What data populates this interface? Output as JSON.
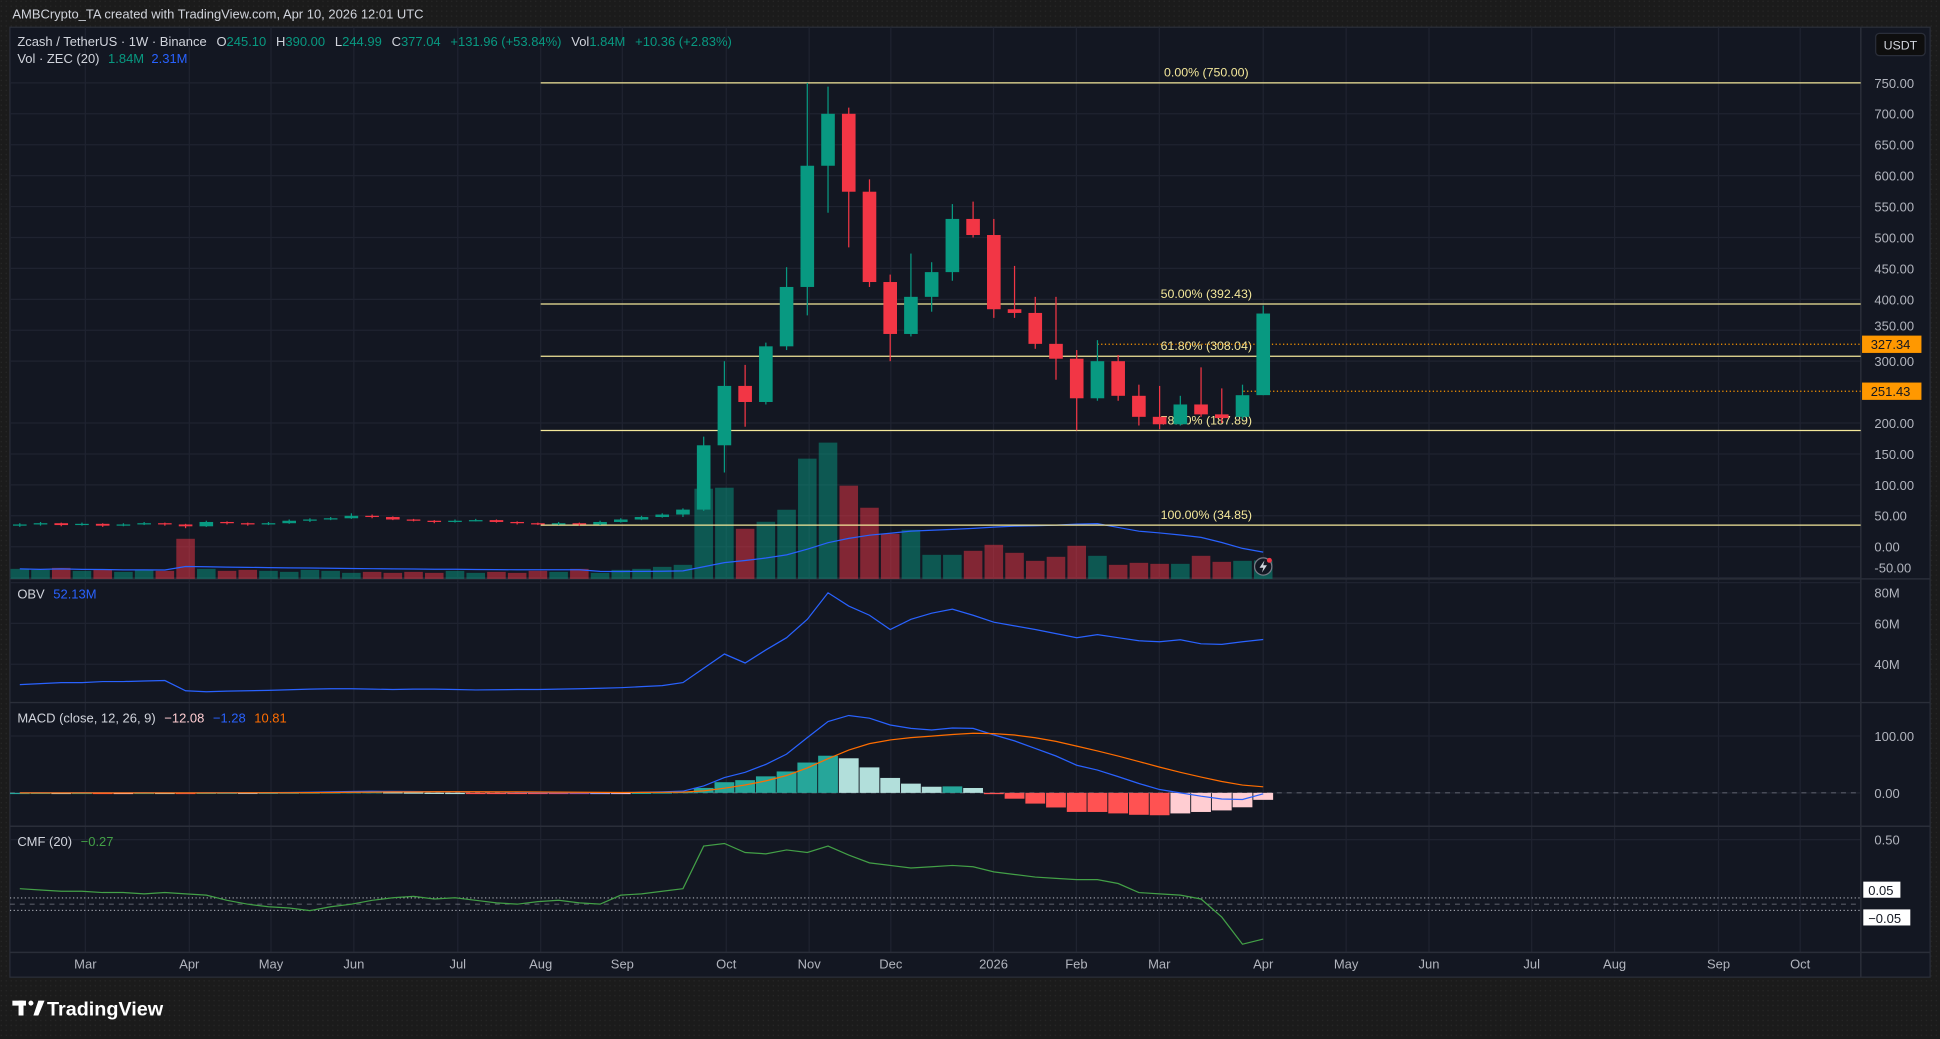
{
  "attribution": "AMBCrypto_TA created with TradingView.com, Apr 10, 2026 12:01 UTC",
  "legend": {
    "symbol": "Zcash / TetherUS · 1W · Binance",
    "o_label": "O",
    "o_value": "245.10",
    "h_label": "H",
    "h_value": "390.00",
    "l_label": "L",
    "l_value": "244.99",
    "c_label": "C",
    "c_value": "377.04",
    "change": "+131.96 (+53.84%)",
    "vol_label": "Vol",
    "vol_value": "1.84M",
    "vol_change": "+10.36 (+2.83%)",
    "vol_ind_label": "Vol · ZEC (20)",
    "vol_ind_value": "1.84M",
    "vol_ind_ma": "2.31M"
  },
  "price_axis": {
    "currency_button": "USDT",
    "ticks": [
      "750.00",
      "700.00",
      "650.00",
      "600.00",
      "550.00",
      "500.00",
      "450.00",
      "400.00",
      "350.00",
      "300.00",
      "200.00",
      "150.00",
      "100.00",
      "50.00",
      "0.00",
      "-50.00"
    ],
    "price_labels": [
      {
        "text": "327.34",
        "value": 327.34
      },
      {
        "text": "251.43",
        "value": 251.43
      }
    ]
  },
  "fib_levels": [
    {
      "label": "0.00% (750.00)",
      "price": 750.0
    },
    {
      "label": "50.00% (392.43)",
      "price": 392.43
    },
    {
      "label": "61.80% (308.04)",
      "price": 308.04
    },
    {
      "label": "78.60% (187.89)",
      "price": 187.89
    },
    {
      "label": "100.00% (34.85)",
      "price": 34.85
    }
  ],
  "obv": {
    "label": "OBV",
    "value": "52.13M",
    "ticks": [
      "80M",
      "60M",
      "40M"
    ]
  },
  "macd": {
    "label": "MACD (close, 12, 26, 9)",
    "hist": "−12.08",
    "macd": "−1.28",
    "signal": "10.81",
    "ticks": [
      "100.00",
      "0.00"
    ]
  },
  "cmf": {
    "label": "CMF (20)",
    "value": "−0.27",
    "ticks": [
      "0.50"
    ],
    "band_labels": [
      "0.05",
      "−0.05"
    ]
  },
  "time_axis": [
    "Mar",
    "Apr",
    "May",
    "Jun",
    "Jul",
    "Aug",
    "Sep",
    "Oct",
    "Nov",
    "Dec",
    "2026",
    "Feb",
    "Mar",
    "Apr",
    "May",
    "Jun",
    "Jul",
    "Aug",
    "Sep",
    "Oct"
  ],
  "footer": {
    "brand": "TradingView"
  },
  "colors": {
    "up": "#089981",
    "down": "#f23645",
    "fib": "#f3e79a",
    "price_label": "#ff9800",
    "obv": "#2962ff",
    "macd": "#2962ff",
    "signal": "#ff6d00",
    "cmf": "#43a047",
    "background": "#131722"
  },
  "chart_data": {
    "type": "candlestick",
    "interval": "1W",
    "ohlc": [
      [
        34,
        38,
        32,
        36
      ],
      [
        36,
        40,
        34,
        38
      ],
      [
        38,
        39,
        33,
        35
      ],
      [
        35,
        39,
        34,
        37
      ],
      [
        37,
        38,
        32,
        34
      ],
      [
        34,
        38,
        33,
        36
      ],
      [
        36,
        40,
        35,
        38
      ],
      [
        38,
        39,
        34,
        36
      ],
      [
        36,
        37,
        30,
        33
      ],
      [
        33,
        42,
        32,
        40
      ],
      [
        40,
        41,
        36,
        38
      ],
      [
        38,
        39,
        34,
        36
      ],
      [
        36,
        40,
        35,
        38
      ],
      [
        38,
        44,
        37,
        42
      ],
      [
        42,
        46,
        40,
        44
      ],
      [
        44,
        48,
        43,
        46
      ],
      [
        46,
        54,
        45,
        50
      ],
      [
        50,
        52,
        46,
        48
      ],
      [
        48,
        49,
        43,
        44
      ],
      [
        44,
        45,
        41,
        42
      ],
      [
        42,
        43,
        38,
        40
      ],
      [
        40,
        44,
        39,
        42
      ],
      [
        42,
        45,
        41,
        43
      ],
      [
        43,
        44,
        39,
        40
      ],
      [
        40,
        41,
        36,
        38
      ],
      [
        38,
        39,
        35,
        36
      ],
      [
        36,
        40,
        35,
        38
      ],
      [
        38,
        39,
        34,
        36
      ],
      [
        36,
        42,
        35,
        40
      ],
      [
        40,
        46,
        39,
        44
      ],
      [
        44,
        50,
        43,
        48
      ],
      [
        48,
        54,
        47,
        52
      ],
      [
        52,
        62,
        48,
        60
      ],
      [
        60,
        178,
        58,
        164
      ],
      [
        164,
        300,
        120,
        260
      ],
      [
        260,
        294,
        194,
        234
      ],
      [
        234,
        330,
        230,
        324
      ],
      [
        324,
        452,
        318,
        420
      ],
      [
        420,
        750,
        374,
        616
      ],
      [
        616,
        744,
        540,
        700
      ],
      [
        700,
        710,
        484,
        574
      ],
      [
        574,
        594,
        420,
        428
      ],
      [
        428,
        440,
        300,
        344
      ],
      [
        344,
        474,
        340,
        404
      ],
      [
        404,
        460,
        380,
        444
      ],
      [
        444,
        554,
        430,
        530
      ],
      [
        530,
        558,
        500,
        504
      ],
      [
        504,
        530,
        370,
        384
      ],
      [
        384,
        454,
        370,
        378
      ],
      [
        378,
        404,
        320,
        328
      ],
      [
        328,
        404,
        270,
        304
      ],
      [
        304,
        318,
        188,
        240
      ],
      [
        240,
        334,
        236,
        300
      ],
      [
        300,
        310,
        236,
        244
      ],
      [
        244,
        262,
        196,
        210
      ],
      [
        210,
        260,
        190,
        198
      ],
      [
        198,
        244,
        196,
        230
      ],
      [
        230,
        290,
        210,
        214
      ],
      [
        214,
        256,
        200,
        208
      ],
      [
        210,
        262,
        206,
        245
      ],
      [
        245.1,
        390.0,
        244.99,
        377.04
      ]
    ],
    "volume_millions": [
      1.0,
      0.9,
      1.1,
      0.8,
      0.9,
      0.7,
      0.9,
      0.8,
      4.0,
      1.0,
      0.8,
      0.9,
      0.8,
      0.7,
      0.9,
      0.8,
      0.6,
      0.7,
      0.6,
      0.7,
      0.6,
      0.8,
      0.6,
      0.7,
      0.6,
      0.8,
      0.7,
      1.0,
      0.6,
      0.9,
      1.0,
      1.2,
      1.4,
      9.0,
      9.1,
      5.0,
      5.7,
      6.9,
      12.0,
      13.6,
      9.3,
      7.1,
      4.5,
      4.9,
      2.4,
      2.4,
      2.8,
      3.4,
      2.6,
      1.8,
      2.2,
      3.3,
      2.3,
      1.4,
      1.6,
      1.5,
      1.5,
      2.3,
      1.7,
      1.8,
      1.84
    ],
    "obv_millions": [
      30,
      30.5,
      31,
      31,
      31.5,
      31.5,
      31.8,
      32,
      27,
      26.5,
      26.8,
      27,
      27.2,
      27.5,
      27.8,
      28,
      28,
      27.8,
      27.6,
      27.8,
      27.8,
      27.6,
      27.4,
      27.5,
      27.6,
      27.6,
      27.8,
      28,
      28.2,
      28.5,
      29,
      29.5,
      31,
      38,
      45,
      40.6,
      47,
      53,
      62,
      75,
      68.5,
      64,
      57,
      62,
      65,
      67,
      64,
      60.6,
      58.8,
      57,
      55,
      53,
      54.5,
      53,
      51.5,
      51,
      52,
      50,
      49.7,
      51,
      52.13
    ],
    "cmf": [
      0.12,
      0.11,
      0.1,
      0.1,
      0.09,
      0.09,
      0.08,
      0.09,
      0.08,
      0.07,
      0.03,
      0.0,
      -0.02,
      -0.03,
      -0.05,
      -0.02,
      0.0,
      0.03,
      0.05,
      0.06,
      0.04,
      0.05,
      0.03,
      0.01,
      0.0,
      0.02,
      0.03,
      0.01,
      0.0,
      0.07,
      0.08,
      0.1,
      0.12,
      0.45,
      0.47,
      0.4,
      0.39,
      0.42,
      0.4,
      0.45,
      0.38,
      0.32,
      0.3,
      0.28,
      0.29,
      0.3,
      0.29,
      0.25,
      0.23,
      0.21,
      0.2,
      0.19,
      0.19,
      0.16,
      0.09,
      0.08,
      0.07,
      0.04,
      -0.1,
      -0.31,
      -0.27
    ],
    "price_ylim": [
      -50,
      780
    ],
    "grid": true
  }
}
